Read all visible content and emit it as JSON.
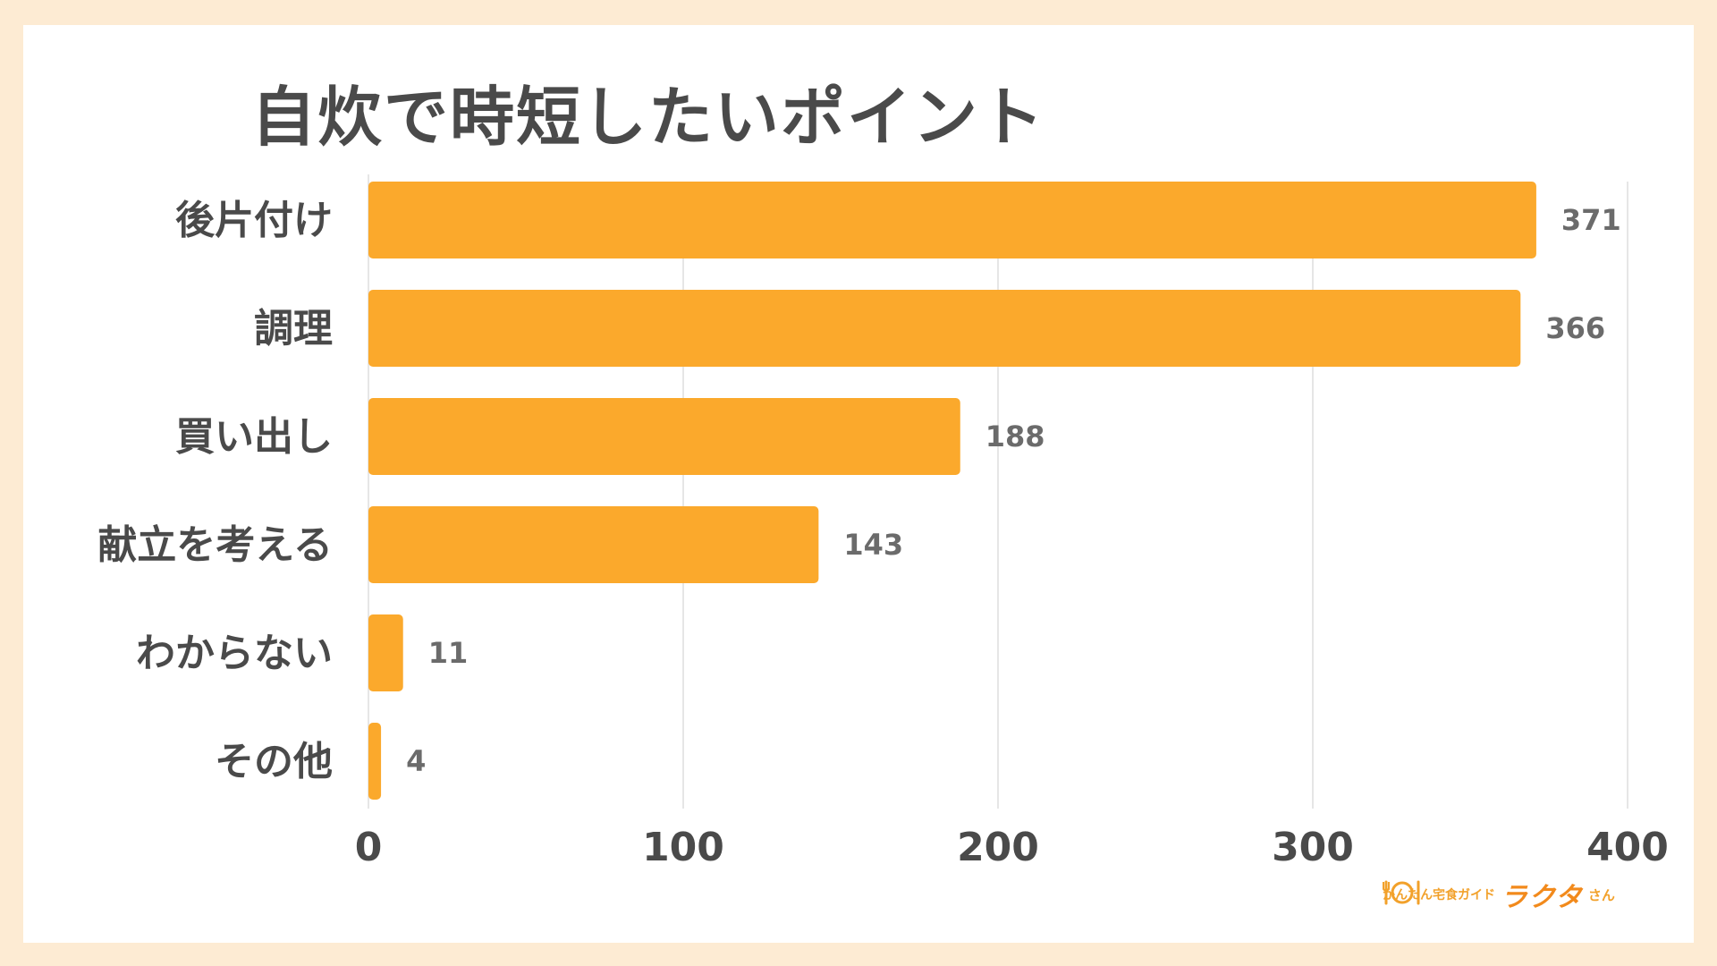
{
  "chart_data": {
    "type": "bar",
    "orientation": "horizontal",
    "title": "自炊で時短したいポイント",
    "categories": [
      "後片付け",
      "調理",
      "買い出し",
      "献立を考える",
      "わからない",
      "その他"
    ],
    "values": [
      371,
      366,
      188,
      143,
      11,
      4
    ],
    "xlim": [
      0,
      400
    ],
    "xticks": [
      0,
      100,
      200,
      300,
      400
    ],
    "grid": true,
    "data_labels": true,
    "bar_color": "#fba92c"
  },
  "colors": {
    "background": "#fdebd3",
    "card": "#ffffff",
    "text": "#4a4a4a",
    "value_label": "#6b6b6b",
    "grid": "#e6e6e6",
    "accent": "#f2a12b"
  },
  "logo": {
    "icon": "plate-cutlery-icon",
    "subtitle": "かんたん宅食ガイド",
    "brand": "ラクタ",
    "suffix": "さん"
  }
}
